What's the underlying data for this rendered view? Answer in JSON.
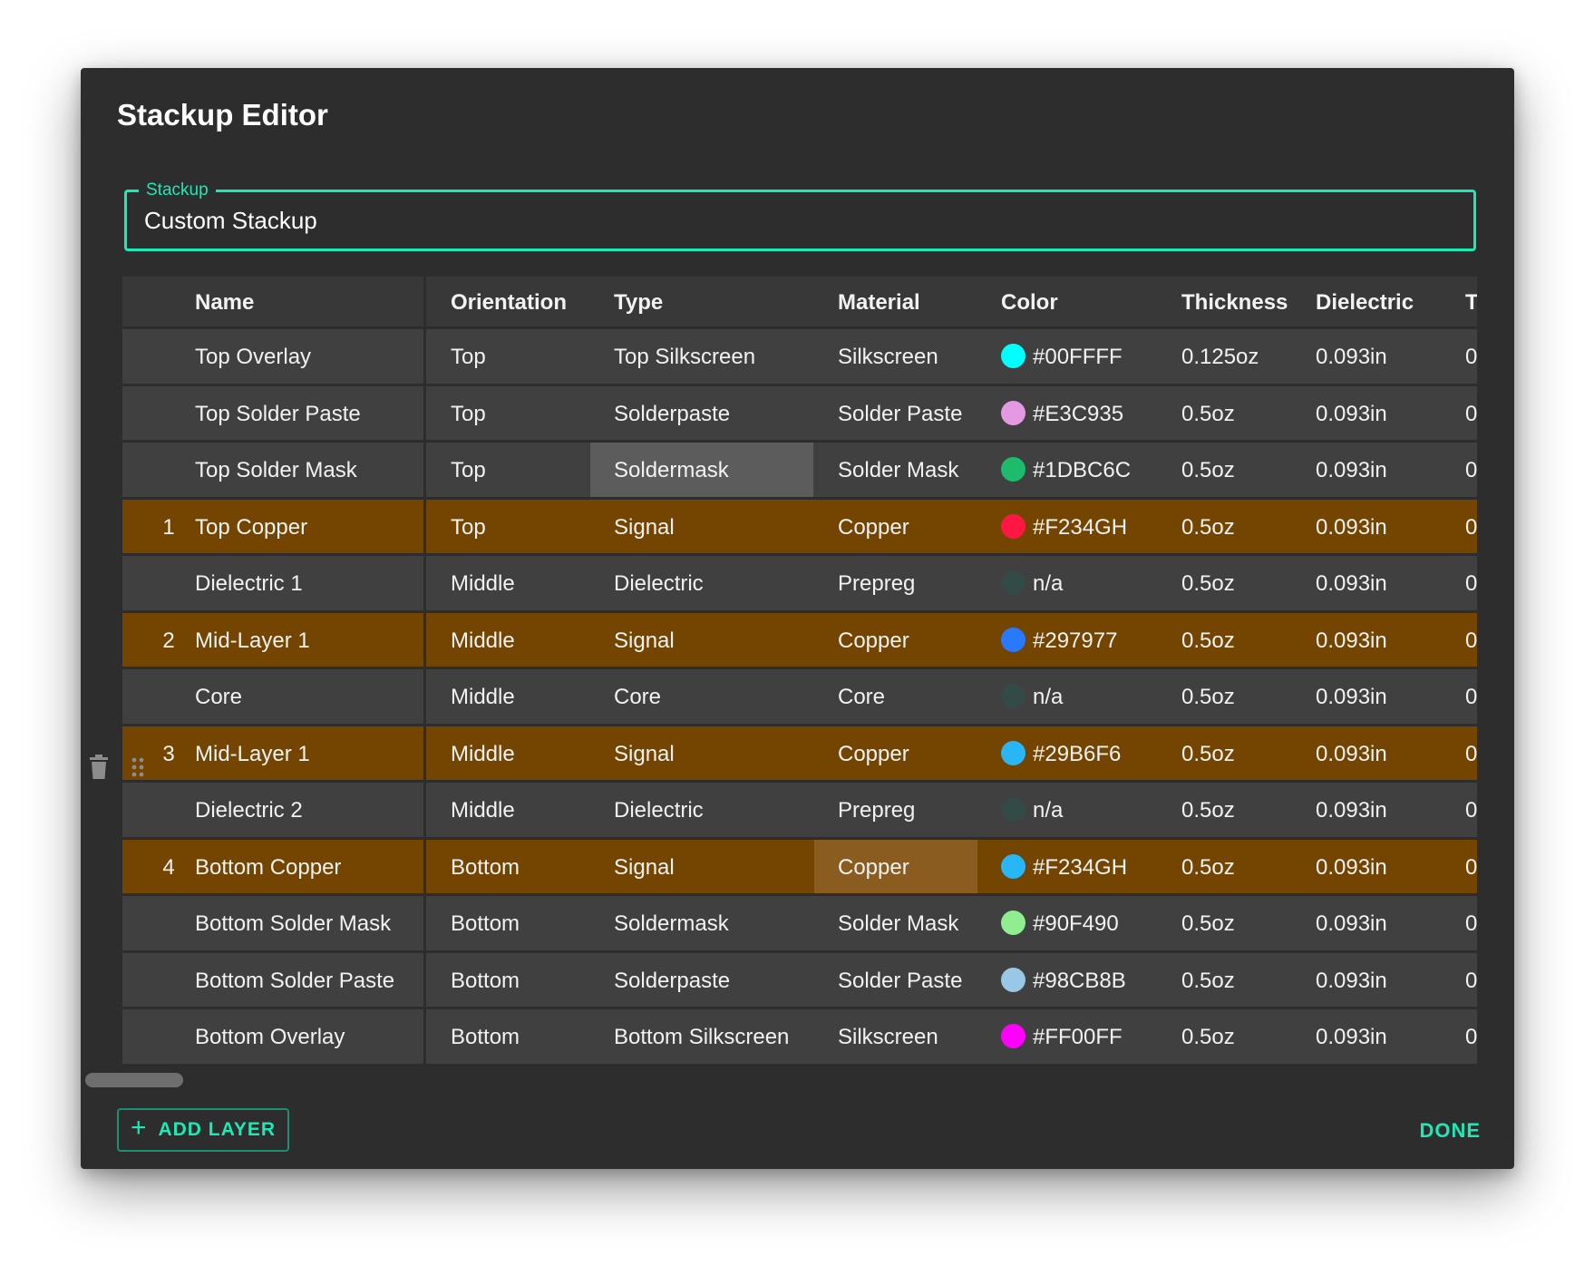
{
  "dialog": {
    "title": "Stackup Editor"
  },
  "stackup_field": {
    "label": "Stackup",
    "value": "Custom Stackup"
  },
  "table": {
    "columns": [
      "Name",
      "Orientation",
      "Type",
      "Material",
      "Color",
      "Thickness",
      "Dielectric",
      "T"
    ],
    "rows": [
      {
        "num": "",
        "name": "Top Overlay",
        "orientation": "Top",
        "type": "Top Silkscreen",
        "material": "Silkscreen",
        "color": "#00FFFF",
        "thickness": "0.125oz",
        "dielectric": "0.093in",
        "trunc": "0",
        "signal": false
      },
      {
        "num": "",
        "name": "Top Solder Paste",
        "orientation": "Top",
        "type": "Solderpaste",
        "material": "Solder Paste",
        "color": "#E3C935",
        "thickness": "0.5oz",
        "dielectric": "0.093in",
        "trunc": "0",
        "signal": false
      },
      {
        "num": "",
        "name": "Top Solder Mask",
        "orientation": "Top",
        "type": "Soldermask",
        "material": "Solder Mask",
        "color": "#1DBC6C",
        "thickness": "0.5oz",
        "dielectric": "0.093in",
        "trunc": "0",
        "signal": false
      },
      {
        "num": "1",
        "name": "Top Copper",
        "orientation": "Top",
        "type": "Signal",
        "material": "Copper",
        "color": "#F234GH",
        "thickness": "0.5oz",
        "dielectric": "0.093in",
        "trunc": "0",
        "signal": true
      },
      {
        "num": "",
        "name": "Dielectric 1",
        "orientation": "Middle",
        "type": "Dielectric",
        "material": "Prepreg",
        "color": "n/a",
        "thickness": "0.5oz",
        "dielectric": "0.093in",
        "trunc": "0",
        "signal": false
      },
      {
        "num": "2",
        "name": "Mid-Layer 1",
        "orientation": "Middle",
        "type": "Signal",
        "material": "Copper",
        "color": "#297977",
        "thickness": "0.5oz",
        "dielectric": "0.093in",
        "trunc": "0",
        "signal": true
      },
      {
        "num": "",
        "name": "Core",
        "orientation": "Middle",
        "type": "Core",
        "material": "Core",
        "color": "n/a",
        "thickness": "0.5oz",
        "dielectric": "0.093in",
        "trunc": "0",
        "signal": false
      },
      {
        "num": "3",
        "name": "Mid-Layer 1",
        "orientation": "Middle",
        "type": "Signal",
        "material": "Copper",
        "color": "#29B6F6",
        "thickness": "0.5oz",
        "dielectric": "0.093in",
        "trunc": "0",
        "signal": true
      },
      {
        "num": "",
        "name": "Dielectric 2",
        "orientation": "Middle",
        "type": "Dielectric",
        "material": "Prepreg",
        "color": "n/a",
        "thickness": "0.5oz",
        "dielectric": "0.093in",
        "trunc": "0",
        "signal": false
      },
      {
        "num": "4",
        "name": "Bottom Copper",
        "orientation": "Bottom",
        "type": "Signal",
        "material": "Copper",
        "color": "#F234GH",
        "thickness": "0.5oz",
        "dielectric": "0.093in",
        "trunc": "0",
        "signal": true
      },
      {
        "num": "",
        "name": "Bottom Solder Mask",
        "orientation": "Bottom",
        "type": "Soldermask",
        "material": "Solder Mask",
        "color": "#90F490",
        "thickness": "0.5oz",
        "dielectric": "0.093in",
        "trunc": "0",
        "signal": false
      },
      {
        "num": "",
        "name": "Bottom Solder Paste",
        "orientation": "Bottom",
        "type": "Solderpaste",
        "material": "Solder Paste",
        "color": "#98CB8B",
        "thickness": "0.5oz",
        "dielectric": "0.093in",
        "trunc": "0",
        "signal": false
      },
      {
        "num": "",
        "name": "Bottom Overlay",
        "orientation": "Bottom",
        "type": "Bottom Silkscreen",
        "material": "Silkscreen",
        "color": "#FF00FF",
        "thickness": "0.5oz",
        "dielectric": "0.093in",
        "trunc": "0",
        "signal": false
      }
    ],
    "swatch_colors": [
      "#00ffff",
      "#e39ae3",
      "#1dbc6c",
      "#ff1744",
      "#344a47",
      "#2979ff",
      "#344a47",
      "#29b6f6",
      "#344a47",
      "#29b6f6",
      "#90ee90",
      "#98c8e6",
      "#ff00ff"
    ]
  },
  "icons": {
    "delete": "trash-icon",
    "drag": "drag-handle-icon",
    "add": "plus-icon"
  },
  "actions": {
    "add_layer": "ADD LAYER",
    "done": "DONE"
  },
  "theme": {
    "accent": "#1de9b6",
    "signal_row": "#744500",
    "row": "#404040",
    "header": "#383838",
    "dialog_bg": "#2d2d2d"
  }
}
